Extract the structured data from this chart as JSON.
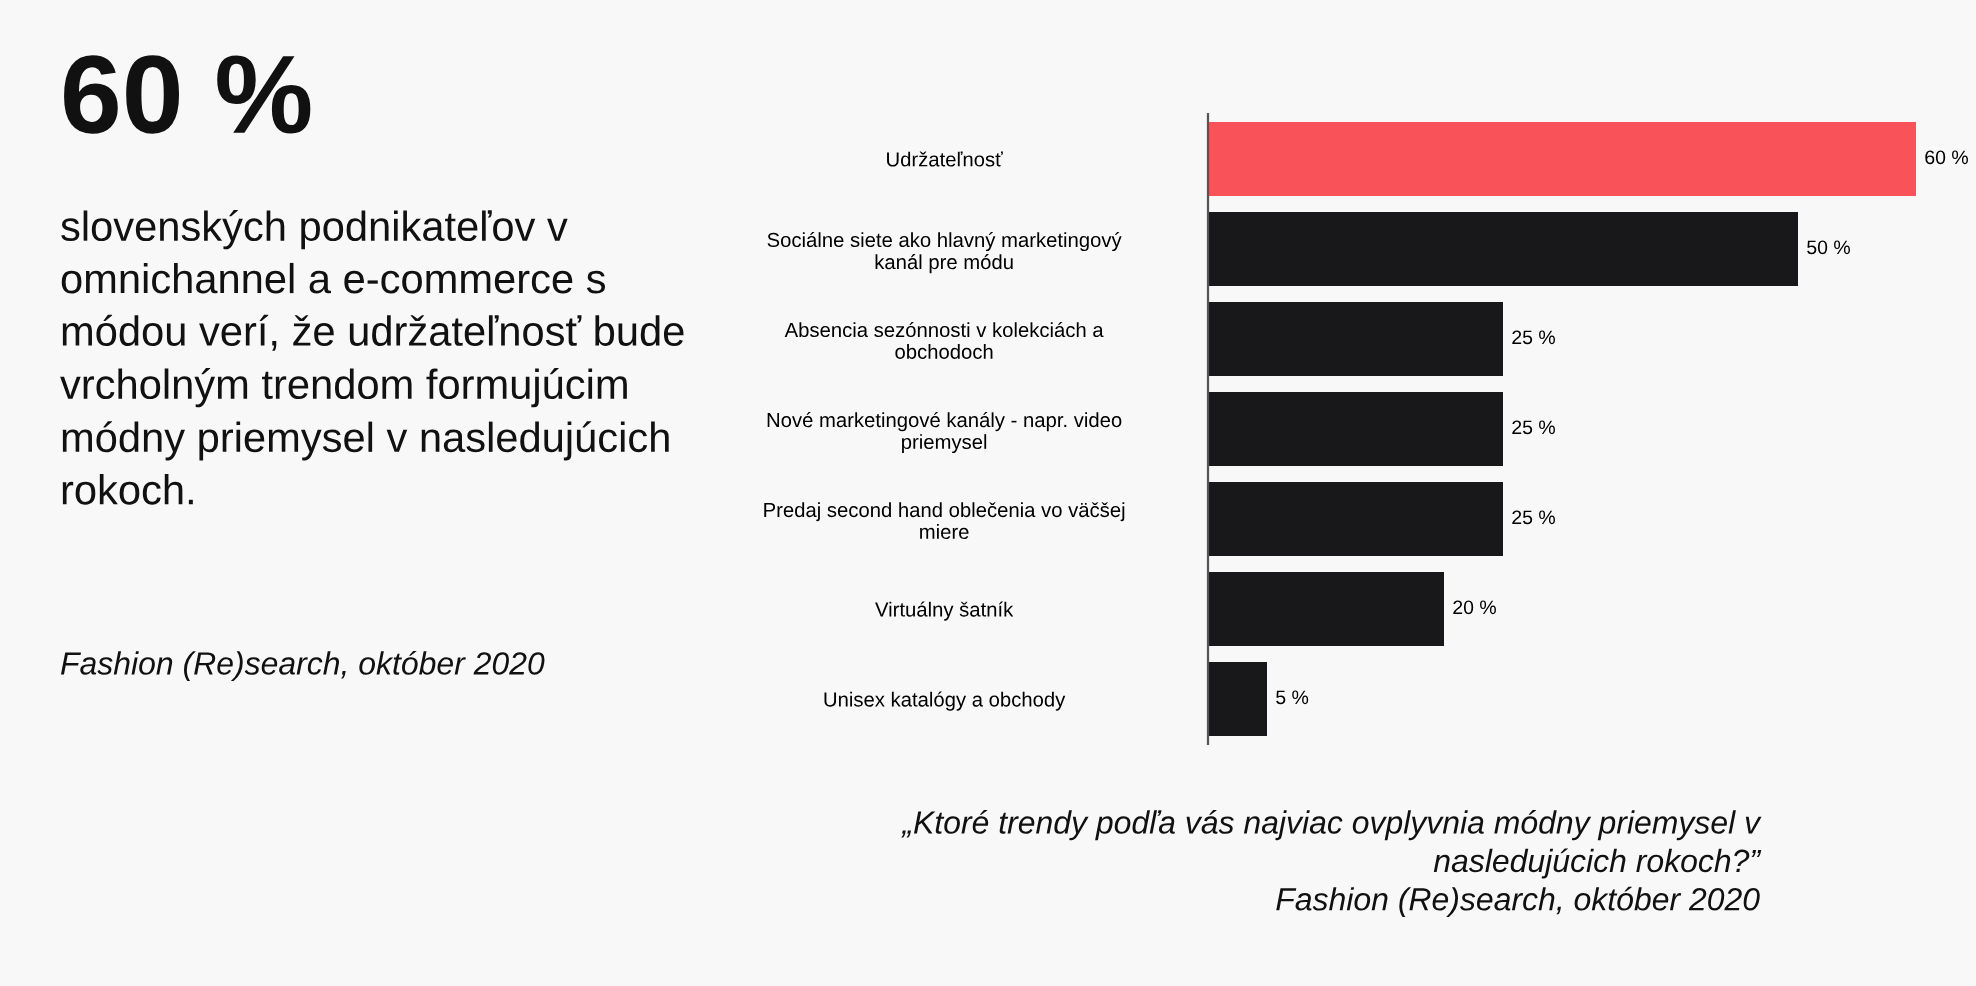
{
  "chart_data": {
    "type": "bar",
    "orientation": "horizontal",
    "title": "60 %",
    "subtitle": "slovenských podnikateľov v\nomnichannel a e-commerce s\nmódou verí, že udržateľnosť bude\nvrcholným trendom formujúcim\nmódny priemysel v nasledujúcich\nrokoch.",
    "categories": [
      "Udržateľnosť",
      "Sociálne siete ako hlavný marketingový\nkanál pre módu",
      "Absencia sezónnosti v kolekciách a\nobchodoch",
      "Nové marketingové kanály - napr. video\npriemysel",
      "Predaj second hand oblečenia vo väčšej\nmiere",
      "Virtuálny šatník",
      "Unisex katalógy a obchody"
    ],
    "values": [
      60,
      50,
      25,
      25,
      25,
      20,
      5
    ],
    "colors": [
      "#fa5259",
      "#18181b",
      "#18181b",
      "#18181b",
      "#18181b",
      "#18181b",
      "#18181b"
    ],
    "value_labels": [
      "60 %",
      "50 %",
      "25 %",
      "25 %",
      "25 %",
      "20 %",
      "5 %"
    ],
    "grid": false,
    "legend": false,
    "annotations": [
      "Fashion (Re)search, október 2020",
      "„Ktoré trendy podľa vás najviac ovplyvnia módny priemysel v\nnasledujúcich rokoch?”\nFashion (Re)search, október 2020"
    ]
  }
}
